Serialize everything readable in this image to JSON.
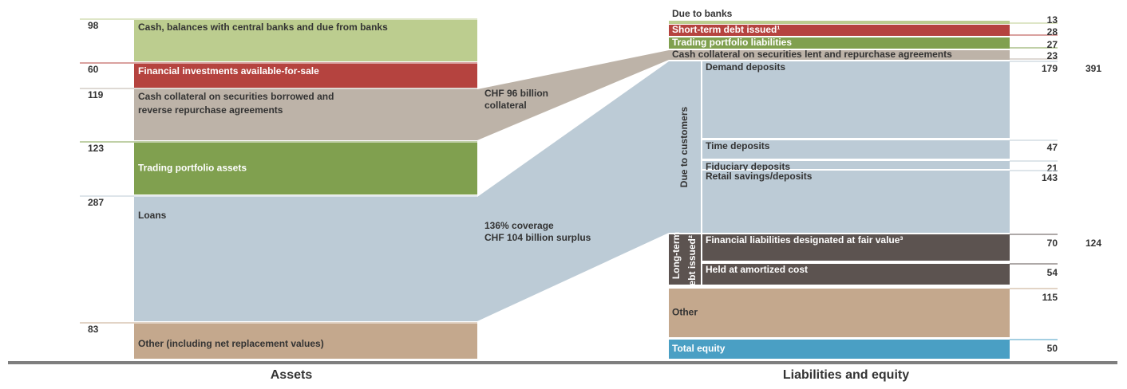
{
  "assets": [
    {
      "value": 98,
      "label": "Cash, balances with central banks and due from banks"
    },
    {
      "value": 60,
      "label": "Financial investments available-for-sale"
    },
    {
      "value": 119,
      "label": [
        "Cash collateral on securities borrowed and",
        "reverse repurchase agreements"
      ]
    },
    {
      "value": 123,
      "label": "Trading portfolio assets"
    },
    {
      "value": 287,
      "label": "Loans"
    },
    {
      "value": 83,
      "label": "Other (including net replacement values)"
    }
  ],
  "annotations": [
    [
      "CHF 96 billion",
      "collateral"
    ],
    [
      "136% coverage",
      "CHF 104 billion surplus"
    ]
  ],
  "liabilities": {
    "top": [
      {
        "value": 13,
        "label": "Due to banks"
      },
      {
        "value": 28,
        "label": "Short-term debt issued¹"
      },
      {
        "value": 27,
        "label": "Trading portfolio liabilities"
      },
      {
        "value": 23,
        "label": "Cash collateral on securities lent and repurchase agreements"
      }
    ],
    "due_to_customers": {
      "label": "Due to customers",
      "total": 391,
      "items": [
        {
          "value": 179,
          "label": "Demand deposits"
        },
        {
          "value": 47,
          "label": "Time deposits"
        },
        {
          "value": 21,
          "label": "Fiduciary deposits"
        },
        {
          "value": 143,
          "label": "Retail savings/deposits"
        }
      ]
    },
    "long_term_debt": {
      "label": [
        "Long-term",
        "debt issued²"
      ],
      "total": 124,
      "items": [
        {
          "value": 70,
          "label": "Financial liabilities designated at fair value³"
        },
        {
          "value": 54,
          "label": "Held at amortized cost"
        }
      ]
    },
    "other": {
      "value": 115,
      "label": "Other"
    },
    "equity": {
      "value": 50,
      "label": "Total equity"
    }
  },
  "footer": {
    "assets": "Assets",
    "liabilities": "Liabilities and equity"
  }
}
